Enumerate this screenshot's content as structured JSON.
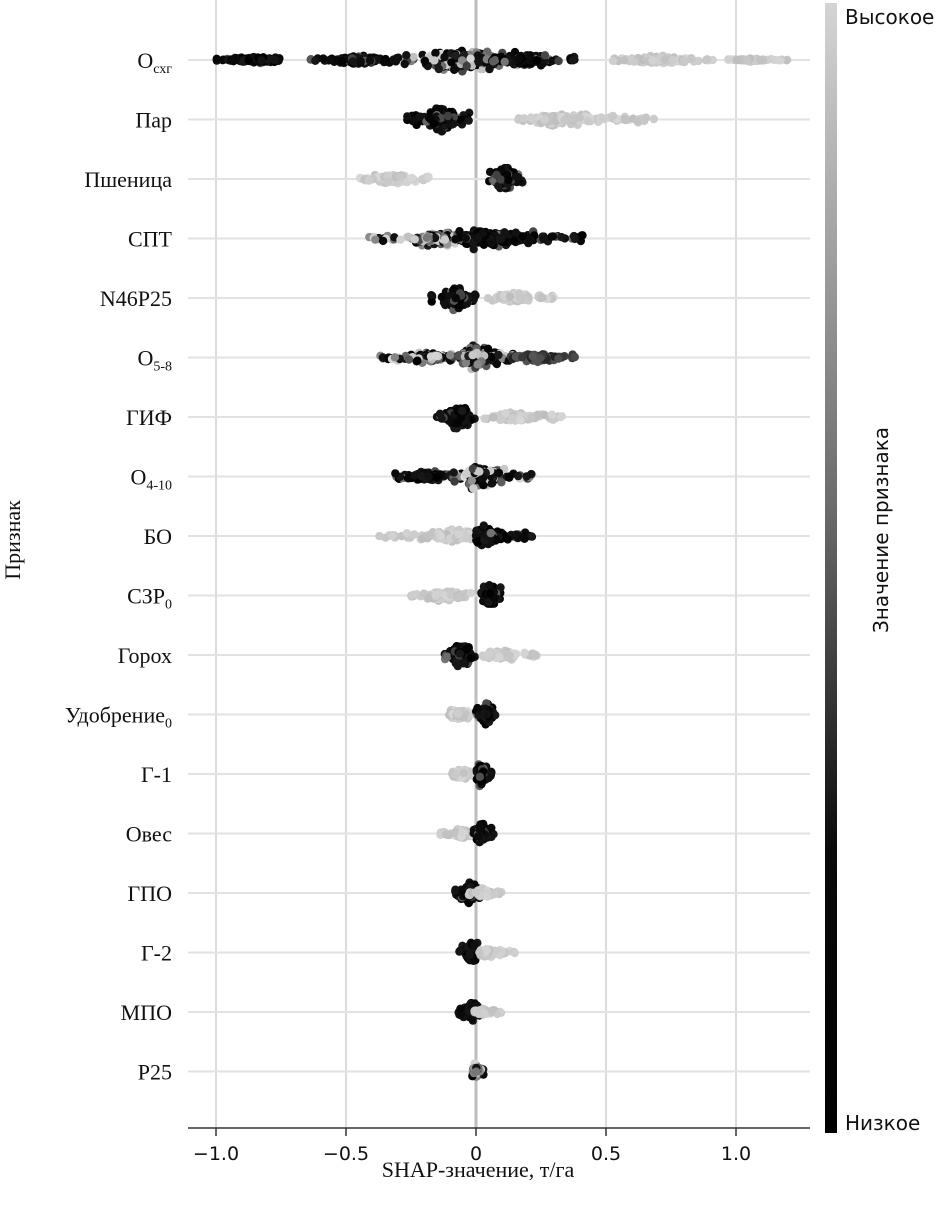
{
  "chart_data": {
    "type": "scatter",
    "subtype": "shap-beeswarm",
    "xlabel": "SHAP-значение, т/га",
    "ylabel": "Признак",
    "xlim": [
      -1.1,
      1.3
    ],
    "xticks": [
      -1.0,
      -0.5,
      0,
      0.5,
      1.0
    ],
    "xtick_labels": [
      "−1.0",
      "−0.5",
      "0",
      "0.5",
      "1.0"
    ],
    "grid": "vertical",
    "colorbar": {
      "label": "Значение признака",
      "high_label": "Высокое",
      "low_label": "Низкое",
      "high_color": "#d4d4d4",
      "low_color": "#000000",
      "placement": "right"
    },
    "features": [
      {
        "name": "O",
        "sub": "схг",
        "clusters": [
          {
            "min": -1.0,
            "max": -0.75,
            "center": -0.85,
            "val": "low",
            "w": 5
          },
          {
            "min": -0.65,
            "max": -0.3,
            "center": -0.45,
            "val": "low",
            "w": 6
          },
          {
            "min": -0.3,
            "max": 0.25,
            "center": -0.05,
            "val": "mid",
            "w": 18
          },
          {
            "min": 0.05,
            "max": 0.4,
            "center": 0.2,
            "val": "low",
            "w": 8
          },
          {
            "min": 0.5,
            "max": 0.92,
            "center": 0.7,
            "val": "high",
            "w": 5
          },
          {
            "min": 0.97,
            "max": 1.2,
            "center": 1.05,
            "val": "high",
            "w": 2
          }
        ]
      },
      {
        "name": "Пар",
        "sub": "",
        "clusters": [
          {
            "min": -0.27,
            "max": -0.02,
            "center": -0.13,
            "val": "low",
            "w": 18
          },
          {
            "min": 0.16,
            "max": 0.72,
            "center": 0.35,
            "val": "high",
            "w": 8
          }
        ]
      },
      {
        "name": "Пшеница",
        "sub": "",
        "clusters": [
          {
            "min": -0.45,
            "max": -0.18,
            "center": -0.33,
            "val": "high",
            "w": 7
          },
          {
            "min": 0.05,
            "max": 0.18,
            "center": 0.11,
            "val": "low",
            "w": 18
          }
        ]
      },
      {
        "name": "СПТ",
        "sub": "",
        "clusters": [
          {
            "min": -0.42,
            "max": -0.05,
            "center": -0.15,
            "val": "mix",
            "w": 10
          },
          {
            "min": -0.1,
            "max": 0.42,
            "center": 0.05,
            "val": "low",
            "w": 14
          }
        ]
      },
      {
        "name": "N46P25",
        "sub": "",
        "clusters": [
          {
            "min": -0.18,
            "max": 0.0,
            "center": -0.07,
            "val": "low",
            "w": 16
          },
          {
            "min": 0.04,
            "max": 0.3,
            "center": 0.14,
            "val": "high",
            "w": 7
          }
        ]
      },
      {
        "name": "O",
        "sub": "5-8",
        "clusters": [
          {
            "min": -0.37,
            "max": -0.05,
            "center": -0.18,
            "val": "mix",
            "w": 8
          },
          {
            "min": -0.1,
            "max": 0.15,
            "center": 0.0,
            "val": "mid",
            "w": 16
          },
          {
            "min": 0.1,
            "max": 0.39,
            "center": 0.22,
            "val": "dark",
            "w": 6
          }
        ]
      },
      {
        "name": "ГИФ",
        "sub": "",
        "clusters": [
          {
            "min": -0.15,
            "max": 0.0,
            "center": -0.06,
            "val": "low",
            "w": 16
          },
          {
            "min": 0.02,
            "max": 0.35,
            "center": 0.15,
            "val": "high",
            "w": 7
          }
        ]
      },
      {
        "name": "O",
        "sub": "4-10",
        "clusters": [
          {
            "min": -0.33,
            "max": -0.05,
            "center": -0.18,
            "val": "low",
            "w": 8
          },
          {
            "min": -0.1,
            "max": 0.22,
            "center": 0.02,
            "val": "mid",
            "w": 16
          }
        ]
      },
      {
        "name": "БО",
        "sub": "",
        "clusters": [
          {
            "min": -0.38,
            "max": -0.02,
            "center": -0.1,
            "val": "high",
            "w": 9
          },
          {
            "min": 0.0,
            "max": 0.22,
            "center": 0.04,
            "val": "low",
            "w": 14
          }
        ]
      },
      {
        "name": "СЗР",
        "sub": "0",
        "clusters": [
          {
            "min": -0.25,
            "max": -0.01,
            "center": -0.12,
            "val": "high",
            "w": 7
          },
          {
            "min": 0.01,
            "max": 0.1,
            "center": 0.05,
            "val": "low",
            "w": 16
          }
        ]
      },
      {
        "name": "Горох",
        "sub": "",
        "clusters": [
          {
            "min": -0.13,
            "max": 0.0,
            "center": -0.05,
            "val": "low",
            "w": 16
          },
          {
            "min": 0.02,
            "max": 0.25,
            "center": 0.1,
            "val": "high",
            "w": 7
          }
        ]
      },
      {
        "name": "Удобрение",
        "sub": "0",
        "clusters": [
          {
            "min": -0.14,
            "max": -0.01,
            "center": -0.07,
            "val": "high",
            "w": 8
          },
          {
            "min": 0.0,
            "max": 0.08,
            "center": 0.04,
            "val": "low",
            "w": 16
          }
        ]
      },
      {
        "name": "Г-1",
        "sub": "",
        "clusters": [
          {
            "min": -0.1,
            "max": -0.01,
            "center": -0.05,
            "val": "high",
            "w": 7
          },
          {
            "min": 0.0,
            "max": 0.06,
            "center": 0.02,
            "val": "low",
            "w": 16
          }
        ]
      },
      {
        "name": "Овес",
        "sub": "",
        "clusters": [
          {
            "min": -0.14,
            "max": -0.01,
            "center": -0.06,
            "val": "high",
            "w": 7
          },
          {
            "min": -0.01,
            "max": 0.07,
            "center": 0.02,
            "val": "low",
            "w": 16
          }
        ]
      },
      {
        "name": "ГПО",
        "sub": "",
        "clusters": [
          {
            "min": -0.08,
            "max": 0.03,
            "center": -0.02,
            "val": "low",
            "w": 14
          },
          {
            "min": -0.03,
            "max": 0.1,
            "center": 0.03,
            "val": "high",
            "w": 6
          }
        ]
      },
      {
        "name": "Г-2",
        "sub": "",
        "clusters": [
          {
            "min": -0.07,
            "max": 0.01,
            "center": -0.02,
            "val": "low",
            "w": 15
          },
          {
            "min": 0.01,
            "max": 0.15,
            "center": 0.05,
            "val": "high",
            "w": 6
          }
        ]
      },
      {
        "name": "МПО",
        "sub": "",
        "clusters": [
          {
            "min": -0.07,
            "max": 0.02,
            "center": -0.01,
            "val": "low",
            "w": 14
          },
          {
            "min": -0.01,
            "max": 0.1,
            "center": 0.03,
            "val": "high",
            "w": 5
          }
        ]
      },
      {
        "name": "P25",
        "sub": "",
        "clusters": [
          {
            "min": -0.02,
            "max": 0.03,
            "center": 0.0,
            "val": "mix",
            "w": 14
          }
        ]
      }
    ]
  }
}
